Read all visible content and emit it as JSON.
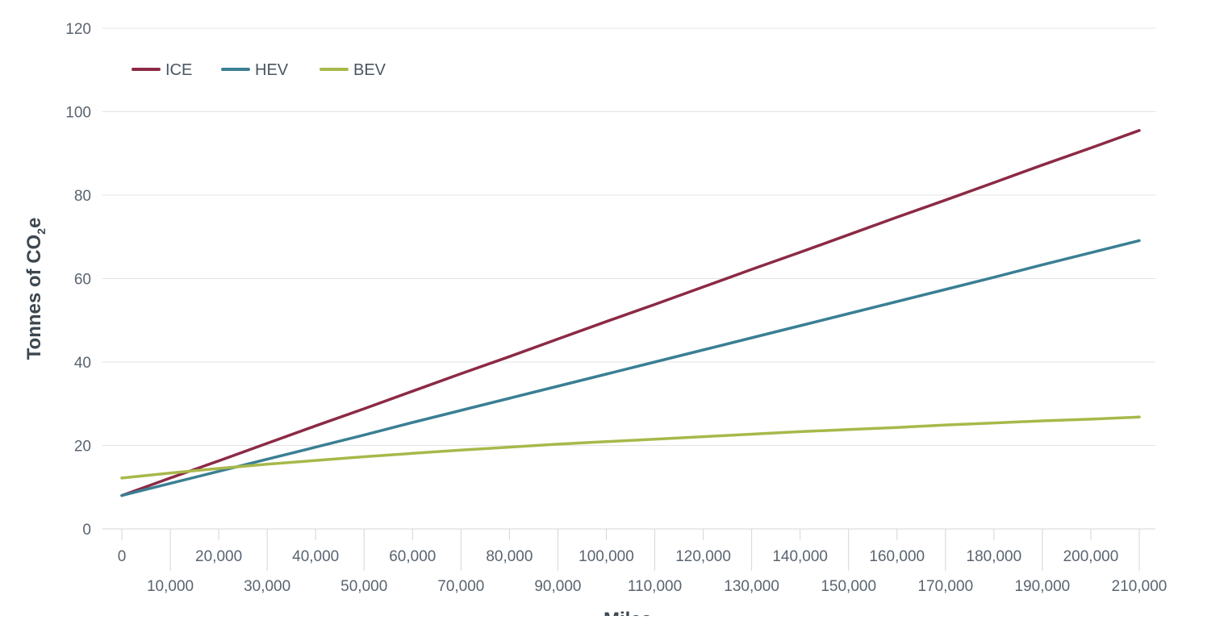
{
  "chart_data": {
    "type": "line",
    "title": "",
    "xlabel": "Miles",
    "ylabel": "Tonnes of CO",
    "ylabel_sub": "2",
    "ylabel_suffix": "e",
    "xlim": [
      0,
      210000
    ],
    "ylim": [
      0,
      120
    ],
    "x_ticks": [
      0,
      10000,
      20000,
      30000,
      40000,
      50000,
      60000,
      70000,
      80000,
      90000,
      100000,
      110000,
      120000,
      130000,
      140000,
      150000,
      160000,
      170000,
      180000,
      190000,
      200000,
      210000
    ],
    "x_tick_labels": [
      "0",
      "10,000",
      "20,000",
      "30,000",
      "40,000",
      "50,000",
      "60,000",
      "70,000",
      "80,000",
      "90,000",
      "100,000",
      "110,000",
      "120,000",
      "130,000",
      "140,000",
      "150,000",
      "160,000",
      "170,000",
      "180,000",
      "190,000",
      "200,000",
      "210,000"
    ],
    "y_ticks": [
      0,
      20,
      40,
      60,
      80,
      100,
      120
    ],
    "y_tick_labels": [
      "0",
      "20",
      "40",
      "60",
      "80",
      "100",
      "120"
    ],
    "grid": true,
    "legend_position": "top-left",
    "x": [
      0,
      10000,
      20000,
      30000,
      40000,
      50000,
      60000,
      70000,
      80000,
      90000,
      100000,
      110000,
      120000,
      130000,
      140000,
      150000,
      160000,
      170000,
      180000,
      190000,
      200000,
      210000
    ],
    "series": [
      {
        "name": "ICE",
        "color": "#8c2a45",
        "values": [
          8.0,
          12.2,
          16.3,
          20.5,
          24.7,
          28.8,
          33.0,
          37.2,
          41.3,
          45.5,
          49.7,
          53.8,
          58.0,
          62.2,
          66.3,
          70.5,
          74.7,
          78.8,
          83.0,
          87.2,
          91.3,
          95.5
        ]
      },
      {
        "name": "HEV",
        "color": "#3a7f93",
        "values": [
          8.0,
          10.9,
          13.8,
          16.7,
          19.6,
          22.5,
          25.5,
          28.4,
          31.3,
          34.2,
          37.1,
          40.0,
          42.9,
          45.8,
          48.7,
          51.6,
          54.5,
          57.4,
          60.3,
          63.3,
          66.2,
          69.1
        ]
      },
      {
        "name": "BEV",
        "color": "#a8b84a",
        "values": [
          12.2,
          13.4,
          14.5,
          15.5,
          16.4,
          17.3,
          18.1,
          18.9,
          19.6,
          20.3,
          20.9,
          21.5,
          22.1,
          22.7,
          23.3,
          23.8,
          24.3,
          24.9,
          25.4,
          25.9,
          26.3,
          26.8
        ]
      }
    ]
  }
}
